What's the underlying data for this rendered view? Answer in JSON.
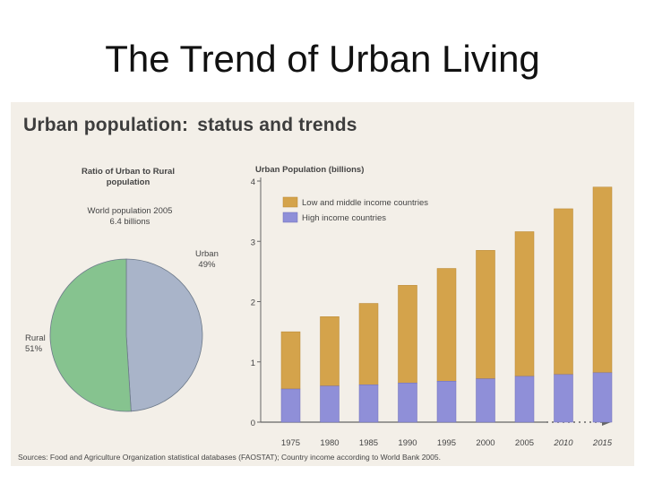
{
  "slide": {
    "title": "The Trend of Urban Living"
  },
  "panel": {
    "title_main": "Urban population:",
    "title_sub": "status and trends",
    "sources": "Sources: Food and Agriculture Organization statistical databases (FAOSTAT); Country income according to World Bank 2005."
  },
  "pie": {
    "title_line1": "Ratio of Urban to Rural",
    "title_line2": "population",
    "note_line1": "World population 2005",
    "note_line2": "6.4 billions",
    "urban_label": "Urban",
    "urban_pct": "49%",
    "rural_label": "Rural",
    "rural_pct": "51%"
  },
  "colors": {
    "urban": "#a9b4c9",
    "rural": "#86c38f",
    "low_middle": "#d4a34b",
    "high": "#8f8fd8",
    "axis": "#666666"
  },
  "chart_data": [
    {
      "type": "pie",
      "title": "Ratio of Urban to Rural population",
      "subtitle": "World population 2005 6.4 billions",
      "labels": [
        "Urban",
        "Rural"
      ],
      "values": [
        49,
        51
      ]
    },
    {
      "type": "bar",
      "stacked": true,
      "title": "Urban Population (billions)",
      "categories": [
        "1975",
        "1980",
        "1985",
        "1990",
        "1995",
        "2000",
        "2005",
        "2010",
        "2015"
      ],
      "projected_categories": [
        "2010",
        "2015"
      ],
      "series": [
        {
          "name": "High income countries",
          "values": [
            0.55,
            0.6,
            0.62,
            0.65,
            0.68,
            0.72,
            0.76,
            0.79,
            0.82
          ]
        },
        {
          "name": "Low and middle income countries",
          "values": [
            0.95,
            1.15,
            1.35,
            1.62,
            1.87,
            2.13,
            2.4,
            2.75,
            3.08
          ]
        }
      ],
      "ylim": [
        0,
        4
      ],
      "yticks": [
        "0",
        "1",
        "2",
        "3",
        "4"
      ],
      "legend": "top-left"
    }
  ]
}
